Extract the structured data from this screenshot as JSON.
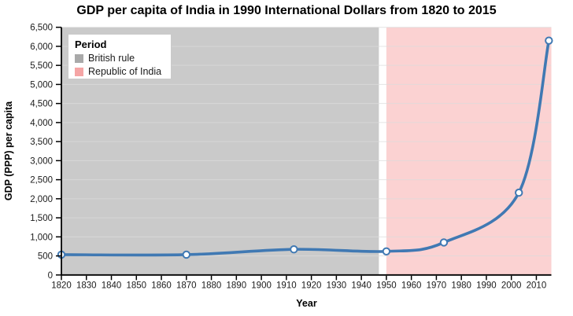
{
  "title": "GDP per capita of India in 1990 International Dollars from 1820 to 2015",
  "legend": {
    "title": "Period",
    "items": [
      {
        "label": "British rule",
        "color": "#a9a9a9"
      },
      {
        "label": "Republic of India",
        "color": "#f5a5a5"
      }
    ]
  },
  "chart_data": {
    "type": "line",
    "title": "GDP per capita of India in 1990 International Dollars from 1820 to 2015",
    "xlabel": "Year",
    "ylabel": "GDP (PPP) per capita",
    "series": [
      {
        "name": "GDP (PPP) per capita of India",
        "x": [
          1820,
          1870,
          1913,
          1950,
          1973,
          2003,
          2015
        ],
        "y": [
          533,
          533,
          673,
          619,
          853,
          2160,
          6150
        ]
      }
    ],
    "xlim": [
      1820,
      2016
    ],
    "ylim": [
      0,
      6500
    ],
    "x_ticks": [
      1820,
      1830,
      1840,
      1850,
      1860,
      1870,
      1880,
      1890,
      1900,
      1910,
      1920,
      1930,
      1940,
      1950,
      1960,
      1970,
      1980,
      1990,
      2000,
      2010
    ],
    "y_ticks": [
      0,
      500,
      1000,
      1500,
      2000,
      2500,
      3000,
      3500,
      4000,
      4500,
      5000,
      5500,
      6000,
      6500
    ],
    "y_tick_labels": [
      "0",
      "500",
      "1,000",
      "1,500",
      "2,000",
      "2,500",
      "3,000",
      "3,500",
      "4,000",
      "4,500",
      "5,000",
      "5,500",
      "6,000",
      "6,500"
    ],
    "grid": true,
    "legend_position": "top-left",
    "regions": [
      {
        "label": "British rule",
        "from": 1820,
        "to": 1947,
        "color": "#cacaca"
      },
      {
        "label": "Republic of India",
        "from": 1950,
        "to": 2016,
        "color": "#fbd2d2"
      }
    ],
    "line_color": "#4079b3",
    "marker_fill": "#ffffff",
    "marker_stroke": "#4079b3",
    "gridline_color": "#dcdcdc",
    "axis_color": "#000000",
    "tick_label_color": "#1a1a1a"
  }
}
